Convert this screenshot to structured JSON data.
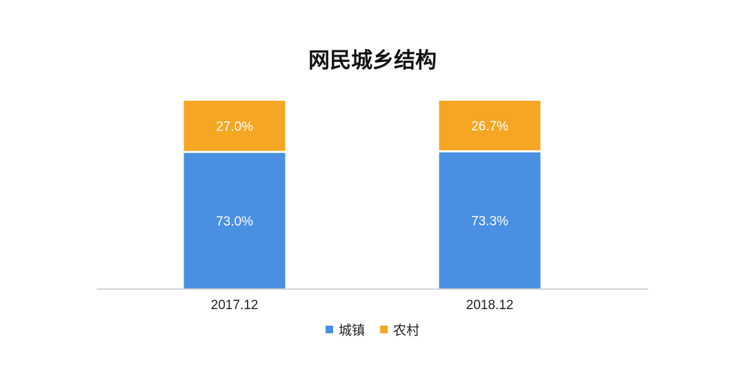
{
  "chart_data": {
    "type": "bar",
    "stacked": true,
    "title": "网民城乡结构",
    "categories": [
      "2017.12",
      "2018.12"
    ],
    "series": [
      {
        "name": "城镇",
        "values": [
          73.0,
          73.3
        ],
        "labels": [
          "73.0%",
          "73.3%"
        ],
        "color": "#4a90e2"
      },
      {
        "name": "农村",
        "values": [
          27.0,
          26.7
        ],
        "labels": [
          "27.0%",
          "26.7%"
        ],
        "color": "#f5a623"
      }
    ],
    "ylim": [
      0,
      100
    ],
    "grid": false,
    "legend_position": "bottom"
  }
}
